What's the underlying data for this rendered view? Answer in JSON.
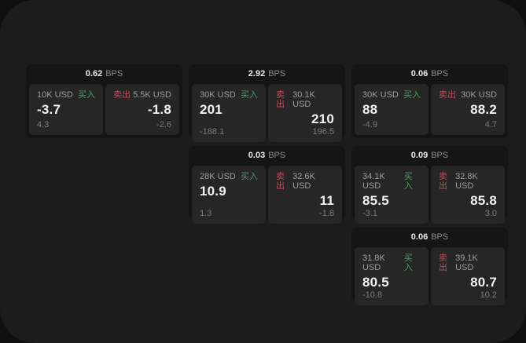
{
  "theme": {
    "page_bg": "#1c1c1d",
    "card_bg": "#151516",
    "panel_bg": "#262627",
    "buy": "#44a368",
    "sell": "#c24a5e"
  },
  "labels": {
    "bps_unit": "BPS",
    "buy": "买入",
    "sell": "卖出"
  },
  "cards": [
    {
      "row": 1,
      "col": 1,
      "bps": "0.62",
      "buy": {
        "amount": "10K USD",
        "price": "-3.7",
        "delta": "4.3"
      },
      "sell": {
        "amount": "5.5K USD",
        "price": "-1.8",
        "delta": "-2.6"
      }
    },
    {
      "row": 1,
      "col": 2,
      "bps": "2.92",
      "buy": {
        "amount": "30K USD",
        "price": "201",
        "delta": "-188.1"
      },
      "sell": {
        "amount": "30.1K USD",
        "price": "210",
        "delta": "196.5"
      }
    },
    {
      "row": 1,
      "col": 3,
      "bps": "0.06",
      "buy": {
        "amount": "30K USD",
        "price": "88",
        "delta": "-4.9"
      },
      "sell": {
        "amount": "30K USD",
        "price": "88.2",
        "delta": "4.7"
      }
    },
    {
      "row": 2,
      "col": 2,
      "bps": "0.03",
      "buy": {
        "amount": "28K USD",
        "price": "10.9",
        "delta": "1.3"
      },
      "sell": {
        "amount": "32.6K USD",
        "price": "11",
        "delta": "-1.8"
      }
    },
    {
      "row": 2,
      "col": 3,
      "bps": "0.09",
      "buy": {
        "amount": "34.1K USD",
        "price": "85.5",
        "delta": "-3.1"
      },
      "sell": {
        "amount": "32.8K USD",
        "price": "85.8",
        "delta": "3.0"
      }
    },
    {
      "row": 3,
      "col": 3,
      "bps": "0.06",
      "buy": {
        "amount": "31.8K USD",
        "price": "80.5",
        "delta": "-10.8"
      },
      "sell": {
        "amount": "39.1K USD",
        "price": "80.7",
        "delta": "10.2"
      }
    }
  ]
}
